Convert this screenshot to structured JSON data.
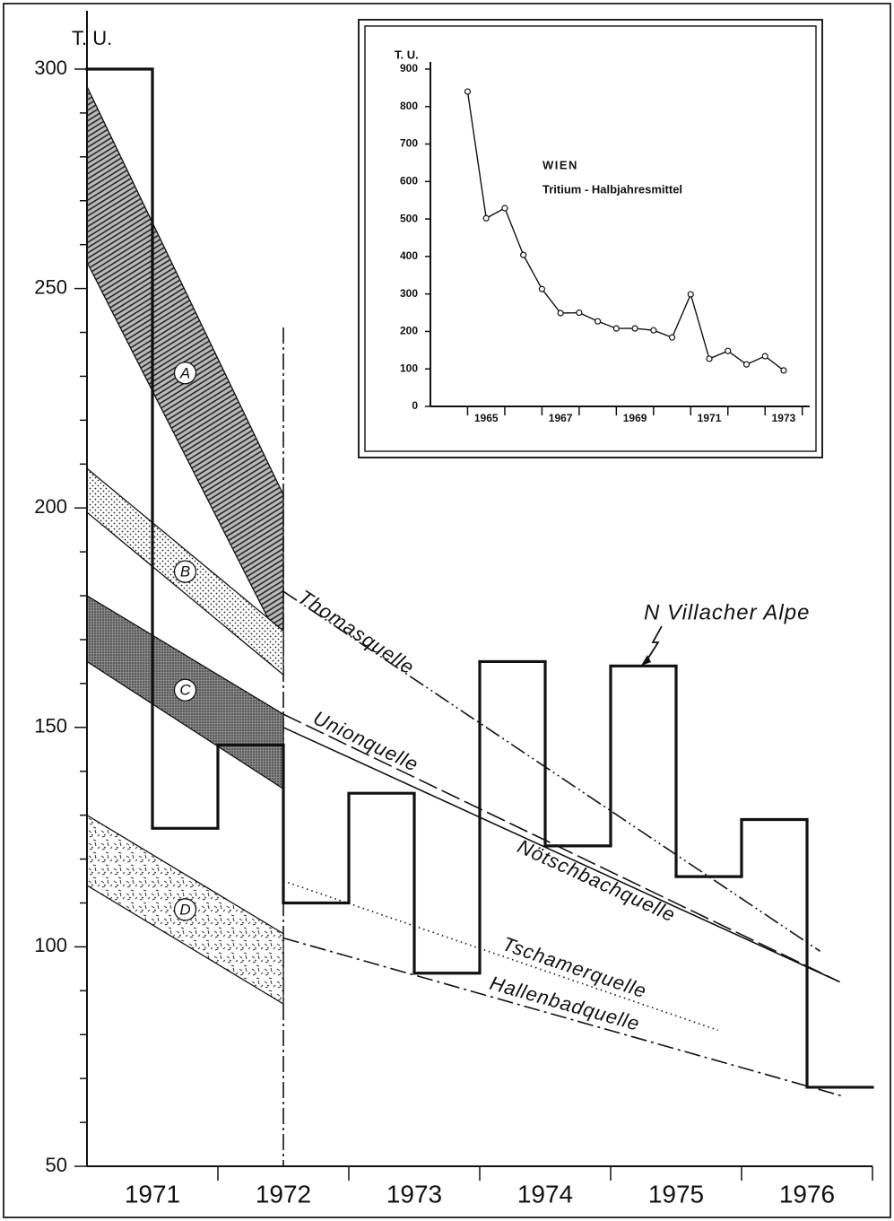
{
  "chart_data": [
    {
      "type": "step",
      "y_label": "T. U.",
      "xlim": [
        1971,
        1977
      ],
      "ylim": [
        50,
        300
      ],
      "yticks": [
        50,
        100,
        150,
        200,
        250,
        300
      ],
      "yminorticks": [
        60,
        70,
        80,
        90,
        110,
        120,
        130,
        140,
        160,
        170,
        180,
        190,
        210,
        220,
        230,
        240,
        260,
        270,
        280,
        290
      ],
      "xticks": [
        {
          "value": 1971.5,
          "label": "1971"
        },
        {
          "value": 1972.5,
          "label": "1972"
        },
        {
          "value": 1973.5,
          "label": "1973"
        },
        {
          "value": 1974.5,
          "label": "1974"
        },
        {
          "value": 1975.5,
          "label": "1975"
        },
        {
          "value": 1976.5,
          "label": "1976"
        }
      ],
      "step": {
        "name": "N Villacher Alpe",
        "color": "#111",
        "x": [
          1971,
          1971.5,
          1972,
          1972.5,
          1973,
          1973.5,
          1974,
          1974.5,
          1975,
          1975.5,
          1976,
          1976.5
        ],
        "values": [
          300,
          127,
          146,
          110,
          135,
          94,
          165,
          123,
          164,
          116,
          129,
          68
        ]
      },
      "bands": [
        {
          "name": "A",
          "pattern": "hatch",
          "x": [
            1971,
            1972.5
          ],
          "upper": [
            296,
            203
          ],
          "lower": [
            256,
            168
          ]
        },
        {
          "name": "B",
          "pattern": "dots",
          "x": [
            1971,
            1972.5
          ],
          "upper": [
            209,
            172
          ],
          "lower": [
            199,
            162
          ]
        },
        {
          "name": "C",
          "pattern": "dense",
          "x": [
            1971,
            1972.5
          ],
          "upper": [
            180,
            153
          ],
          "lower": [
            165,
            136
          ]
        },
        {
          "name": "D",
          "pattern": "dashes",
          "x": [
            1971,
            1972.5
          ],
          "upper": [
            130,
            103
          ],
          "lower": [
            114,
            87
          ]
        }
      ],
      "series": [
        {
          "name": "Thomasquelle",
          "style": "dash-dot-dot",
          "color": "#111",
          "x": [
            1972.5,
            1976.6
          ],
          "values": [
            181,
            99
          ]
        },
        {
          "name": "Unionquelle",
          "style": "long-dash",
          "color": "#111",
          "x": [
            1972.5,
            1976.75
          ],
          "values": [
            153,
            92
          ]
        },
        {
          "name": "Nötschbachquelle",
          "style": "solid",
          "color": "#111",
          "x": [
            1972.5,
            1976.75
          ],
          "values": [
            150,
            92
          ]
        },
        {
          "name": "Tschamerquelle",
          "style": "dotted",
          "color": "#111",
          "x": [
            1972.5,
            1975.82
          ],
          "values": [
            115,
            81
          ]
        },
        {
          "name": "Hallenbadquelle",
          "style": "dash-dot",
          "color": "#111",
          "x": [
            1972.5,
            1976.77
          ],
          "values": [
            102,
            66
          ]
        }
      ]
    },
    {
      "type": "line",
      "y_label": "T. U.",
      "title": "WIEN",
      "subtitle": "Tritium - Halbjahresmittel",
      "xlim": [
        1964,
        1974.2
      ],
      "ylim": [
        0,
        900
      ],
      "yticks": [
        0,
        100,
        200,
        300,
        400,
        500,
        600,
        700,
        800,
        900
      ],
      "xticks": [
        {
          "value": 1965.5,
          "label": "1965"
        },
        {
          "value": 1967.5,
          "label": "1967"
        },
        {
          "value": 1969.5,
          "label": "1969"
        },
        {
          "value": 1971.5,
          "label": "1971"
        },
        {
          "value": 1973.5,
          "label": "1973"
        }
      ],
      "color": "#111",
      "x": [
        1965,
        1965.5,
        1966,
        1966.5,
        1967,
        1967.5,
        1968,
        1968.5,
        1969,
        1969.5,
        1970,
        1970.5,
        1971,
        1971.5,
        1972,
        1972.5,
        1973,
        1973.5
      ],
      "values": [
        840,
        502,
        529,
        404,
        313,
        249,
        250,
        227,
        208,
        208,
        203,
        184,
        299,
        127,
        148,
        112,
        134,
        96
      ]
    }
  ]
}
